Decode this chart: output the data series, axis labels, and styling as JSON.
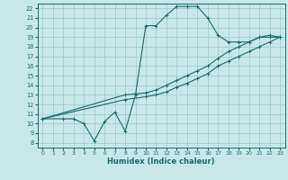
{
  "xlabel": "Humidex (Indice chaleur)",
  "bg_color": "#c8e8e8",
  "grid_color": "#9cc8c8",
  "line_color": "#1a6868",
  "xlim": [
    -0.5,
    23.5
  ],
  "ylim": [
    7.5,
    22.5
  ],
  "xticks": [
    0,
    1,
    2,
    3,
    4,
    5,
    6,
    7,
    8,
    9,
    10,
    11,
    12,
    13,
    14,
    15,
    16,
    17,
    18,
    19,
    20,
    21,
    22,
    23
  ],
  "yticks": [
    8,
    9,
    10,
    11,
    12,
    13,
    14,
    15,
    16,
    17,
    18,
    19,
    20,
    21,
    22
  ],
  "line1_x": [
    0,
    2,
    3,
    4,
    5,
    6,
    7,
    8,
    9,
    10,
    11,
    12,
    13,
    14,
    15,
    16,
    17,
    18,
    19,
    20,
    21,
    22,
    23
  ],
  "line1_y": [
    10.5,
    10.5,
    10.5,
    10.0,
    8.2,
    10.2,
    11.2,
    9.2,
    13.0,
    20.2,
    20.2,
    21.3,
    22.2,
    22.2,
    22.2,
    21.0,
    19.2,
    18.5,
    18.5,
    18.5,
    19.0,
    19.2,
    19.0
  ],
  "line2_x": [
    0,
    8,
    10,
    11,
    12,
    13,
    14,
    15,
    16,
    17,
    18,
    19,
    20,
    21,
    22,
    23
  ],
  "line2_y": [
    10.5,
    13.0,
    13.2,
    13.5,
    14.0,
    14.5,
    15.0,
    15.5,
    16.0,
    16.8,
    17.5,
    18.0,
    18.5,
    19.0,
    19.0,
    19.0
  ],
  "line3_x": [
    0,
    8,
    10,
    11,
    12,
    13,
    14,
    15,
    16,
    17,
    18,
    19,
    20,
    21,
    22,
    23
  ],
  "line3_y": [
    10.5,
    12.5,
    12.8,
    13.0,
    13.3,
    13.8,
    14.2,
    14.7,
    15.2,
    16.0,
    16.5,
    17.0,
    17.5,
    18.0,
    18.5,
    19.0
  ]
}
